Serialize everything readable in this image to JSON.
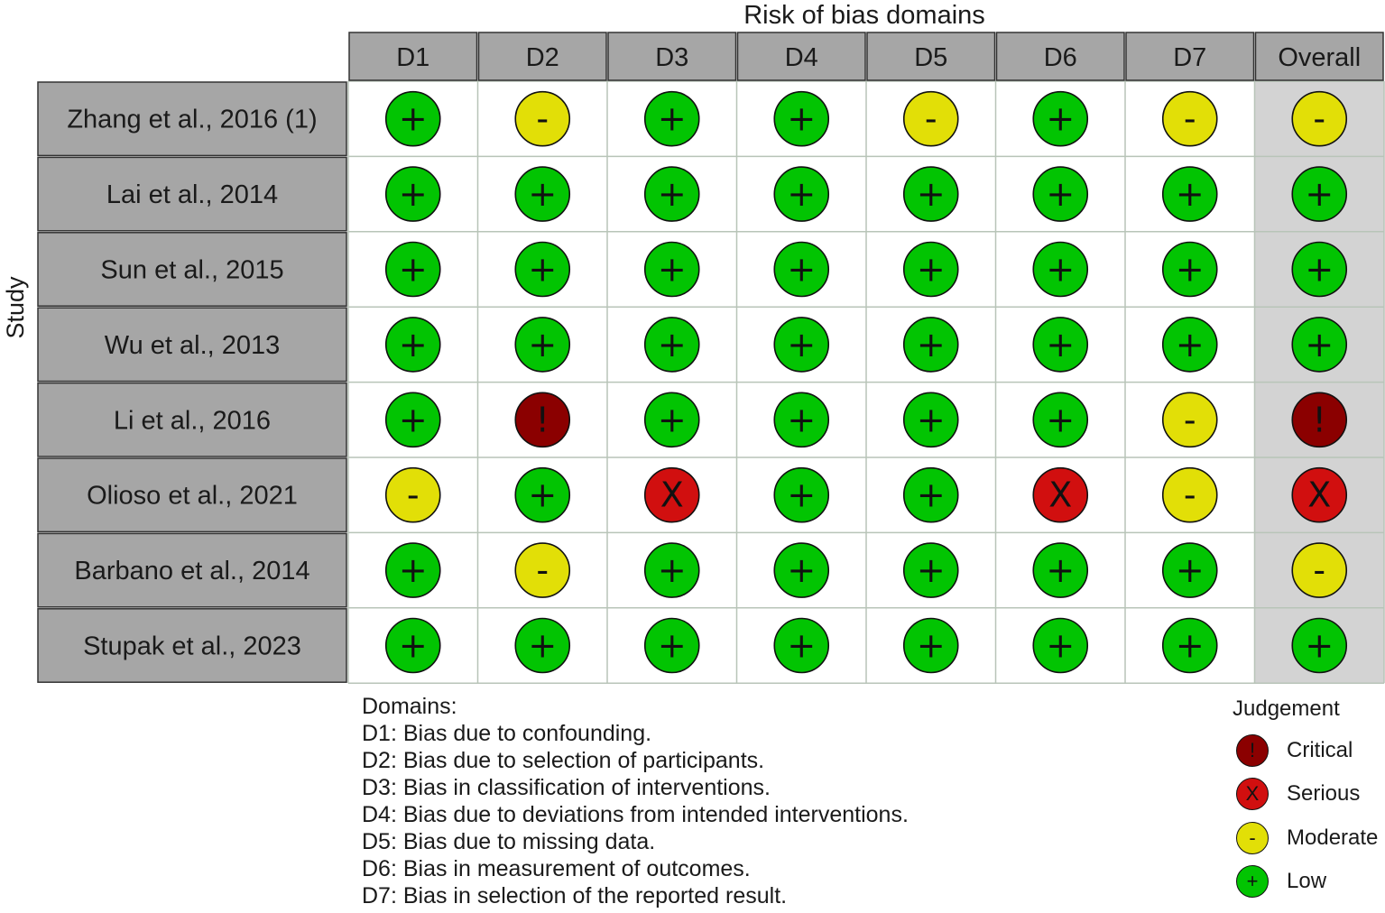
{
  "chart_data": {
    "type": "table",
    "title": "Risk of bias domains",
    "row_axis_label": "Study",
    "columns": [
      "D1",
      "D2",
      "D3",
      "D4",
      "D5",
      "D6",
      "D7",
      "Overall"
    ],
    "studies": [
      {
        "name": "Zhang et al., 2016 (1)",
        "judgements": [
          "Low",
          "Moderate",
          "Low",
          "Low",
          "Moderate",
          "Low",
          "Moderate",
          "Moderate"
        ]
      },
      {
        "name": "Lai et al., 2014",
        "judgements": [
          "Low",
          "Low",
          "Low",
          "Low",
          "Low",
          "Low",
          "Low",
          "Low"
        ]
      },
      {
        "name": "Sun et al., 2015",
        "judgements": [
          "Low",
          "Low",
          "Low",
          "Low",
          "Low",
          "Low",
          "Low",
          "Low"
        ]
      },
      {
        "name": "Wu et al., 2013",
        "judgements": [
          "Low",
          "Low",
          "Low",
          "Low",
          "Low",
          "Low",
          "Low",
          "Low"
        ]
      },
      {
        "name": "Li et al., 2016",
        "judgements": [
          "Low",
          "Critical",
          "Low",
          "Low",
          "Low",
          "Low",
          "Moderate",
          "Critical"
        ]
      },
      {
        "name": "Olioso et al., 2021",
        "judgements": [
          "Moderate",
          "Low",
          "Serious",
          "Low",
          "Low",
          "Serious",
          "Moderate",
          "Serious"
        ]
      },
      {
        "name": "Barbano et al., 2014",
        "judgements": [
          "Low",
          "Moderate",
          "Low",
          "Low",
          "Low",
          "Low",
          "Low",
          "Moderate"
        ]
      },
      {
        "name": "Stupak et al., 2023",
        "judgements": [
          "Low",
          "Low",
          "Low",
          "Low",
          "Low",
          "Low",
          "Low",
          "Low"
        ]
      }
    ],
    "domains_title": "Domains:",
    "domain_descriptions": [
      "D1: Bias due to confounding.",
      "D2: Bias due to selection of participants.",
      "D3: Bias in classification of interventions.",
      "D4: Bias due to deviations from intended interventions.",
      "D5: Bias due to missing data.",
      "D6: Bias in measurement of outcomes.",
      "D7: Bias in selection of the reported result."
    ],
    "legend": {
      "title": "Judgement",
      "items": [
        {
          "label": "Critical",
          "symbol": "!",
          "color": "#8b0000"
        },
        {
          "label": "Serious",
          "symbol": "X",
          "color": "#d10f0f"
        },
        {
          "label": "Moderate",
          "symbol": "-",
          "color": "#e2df07"
        },
        {
          "label": "Low",
          "symbol": "+",
          "color": "#02c402"
        }
      ]
    }
  }
}
